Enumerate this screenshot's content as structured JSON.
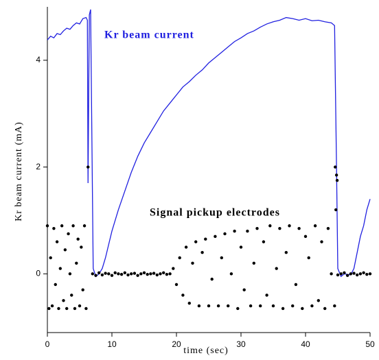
{
  "chart_data": {
    "type": "line",
    "xlabel": "time (sec)",
    "ylabel": "Kr beam current (mA)",
    "annotations": [
      "Kr beam current",
      "Signal pickup electrodes"
    ],
    "xlim": [
      0,
      50
    ],
    "xticks": [
      0,
      10,
      20,
      30,
      40,
      50
    ],
    "ylim": [
      -1.1,
      5.0
    ],
    "yticks": [
      0,
      2,
      4
    ],
    "series": [
      {
        "name": "Kr beam current",
        "type": "line",
        "color": "#2020e0",
        "x": [
          0,
          0.5,
          1,
          1.5,
          2,
          2.5,
          3,
          3.5,
          4,
          4.5,
          5,
          5.5,
          6,
          6.2,
          6.3,
          6.5,
          6.7,
          6.9,
          7.1,
          7.5,
          8,
          8.5,
          9,
          9.5,
          10,
          11,
          12,
          13,
          14,
          15,
          16,
          17,
          18,
          19,
          20,
          21,
          22,
          23,
          24,
          25,
          26,
          27,
          28,
          29,
          30,
          31,
          32,
          33,
          34,
          35,
          36,
          37,
          38,
          39,
          40,
          41,
          42,
          43,
          44,
          44.5,
          44.8,
          45,
          45.5,
          46,
          47,
          47.5,
          48,
          48.5,
          49,
          49.5,
          50
        ],
        "values": [
          4.38,
          4.45,
          4.42,
          4.5,
          4.48,
          4.55,
          4.6,
          4.58,
          4.65,
          4.7,
          4.68,
          4.78,
          4.8,
          4.75,
          1.7,
          4.85,
          4.95,
          2.5,
          0.1,
          -0.05,
          0.0,
          0.1,
          0.3,
          0.55,
          0.8,
          1.2,
          1.55,
          1.9,
          2.2,
          2.45,
          2.65,
          2.85,
          3.05,
          3.2,
          3.35,
          3.5,
          3.6,
          3.72,
          3.82,
          3.95,
          4.05,
          4.15,
          4.25,
          4.35,
          4.42,
          4.5,
          4.55,
          4.62,
          4.68,
          4.72,
          4.75,
          4.8,
          4.78,
          4.75,
          4.78,
          4.74,
          4.75,
          4.72,
          4.7,
          4.65,
          2.0,
          0.1,
          -0.05,
          0.0,
          -0.02,
          0.1,
          0.4,
          0.7,
          0.9,
          1.2,
          1.4
        ]
      },
      {
        "name": "Signal pickup electrodes",
        "type": "scatter",
        "color": "#000000",
        "x": [
          0,
          0.25,
          0.5,
          0.75,
          1,
          1.25,
          1.5,
          1.75,
          2,
          2.25,
          2.5,
          2.75,
          3,
          3.25,
          3.5,
          3.75,
          4,
          4.25,
          4.5,
          4.75,
          5,
          5.25,
          5.5,
          5.75,
          6,
          7,
          7.5,
          8,
          8.5,
          9,
          9.5,
          10,
          10.5,
          11,
          11.5,
          12,
          12.5,
          13,
          13.5,
          14,
          14.5,
          15,
          15.5,
          16,
          16.5,
          17,
          17.5,
          18,
          18.5,
          19,
          19.5,
          20,
          20.5,
          21,
          21.5,
          22,
          22.5,
          23,
          23.5,
          24,
          24.5,
          25,
          25.5,
          26,
          26.5,
          27,
          27.5,
          28,
          28.5,
          29,
          29.5,
          30,
          30.5,
          31,
          31.5,
          32,
          32.5,
          33,
          33.5,
          34,
          34.5,
          35,
          35.5,
          36,
          36.5,
          37,
          37.5,
          38,
          38.5,
          39,
          39.5,
          40,
          40.5,
          41,
          41.5,
          42,
          42.5,
          43,
          43.5,
          44,
          44.5,
          45,
          45.5,
          46,
          46.5,
          47,
          47.5,
          48,
          48.5,
          49,
          49.5,
          50,
          6.3,
          44.6,
          44.8,
          44.7,
          44.9
        ],
        "values": [
          0.9,
          -0.65,
          0.3,
          -0.6,
          0.85,
          -0.2,
          0.6,
          -0.65,
          0.1,
          0.9,
          -0.5,
          0.45,
          -0.65,
          0.75,
          0.0,
          -0.4,
          0.9,
          -0.65,
          0.2,
          0.65,
          -0.6,
          0.5,
          -0.3,
          0.9,
          -0.65,
          0.0,
          -0.03,
          0.02,
          -0.02,
          0.01,
          0.0,
          -0.03,
          0.02,
          0.0,
          -0.01,
          0.02,
          -0.02,
          0.0,
          0.01,
          -0.03,
          0.0,
          0.02,
          -0.01,
          0.0,
          0.01,
          -0.02,
          0.0,
          0.02,
          -0.01,
          0.0,
          0.1,
          -0.2,
          0.3,
          -0.4,
          0.5,
          -0.55,
          0.2,
          0.6,
          -0.6,
          0.4,
          0.65,
          -0.6,
          -0.1,
          0.7,
          -0.6,
          0.3,
          0.75,
          -0.6,
          0.0,
          0.8,
          -0.65,
          0.5,
          -0.3,
          0.8,
          -0.6,
          0.2,
          0.85,
          -0.6,
          0.6,
          -0.4,
          0.9,
          -0.6,
          0.1,
          0.85,
          -0.65,
          0.4,
          0.9,
          -0.6,
          -0.2,
          0.85,
          -0.65,
          0.7,
          0.3,
          -0.6,
          0.9,
          -0.5,
          0.6,
          -0.65,
          0.85,
          0.0,
          -0.6,
          -0.02,
          0.0,
          0.02,
          -0.03,
          0.0,
          0.01,
          -0.02,
          0.0,
          0.02,
          -0.01,
          0.0,
          2.0,
          2.0,
          1.85,
          1.2,
          1.75
        ]
      }
    ]
  }
}
